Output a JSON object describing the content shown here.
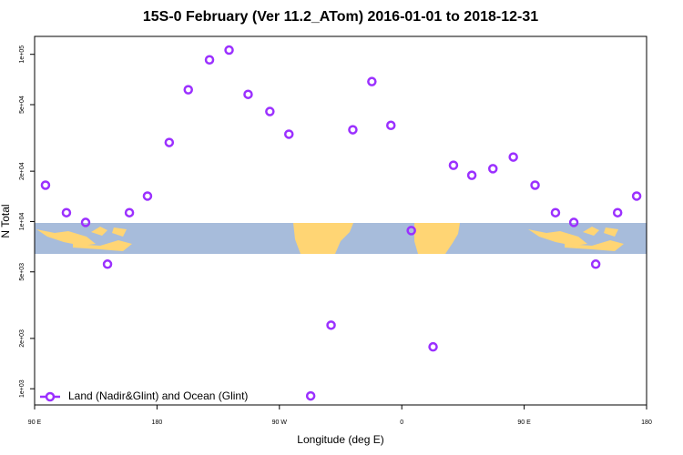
{
  "chart_data": {
    "type": "scatter",
    "title": "15S-0 February (Ver 11.2_ATom)   2016-01-01 to 2018-12-31",
    "x_label": "Longitude (deg E)",
    "y_label": "N Total",
    "log_y": true,
    "legend_position": "bottom-left",
    "xlim": [
      90,
      540
    ],
    "xticks": [
      {
        "value": 90,
        "label": "90 E"
      },
      {
        "value": 180,
        "label": "180"
      },
      {
        "value": 270,
        "label": "90 W"
      },
      {
        "value": 360,
        "label": "0"
      },
      {
        "value": 450,
        "label": "90 E"
      },
      {
        "value": 540,
        "label": "180"
      }
    ],
    "ylim": [
      800,
      128000
    ],
    "yticks": [
      {
        "value": 1000,
        "label": "1e+03"
      },
      {
        "value": 2000,
        "label": "2e+03"
      },
      {
        "value": 5000,
        "label": "5e+03"
      },
      {
        "value": 10000,
        "label": "1e+04"
      },
      {
        "value": 20000,
        "label": "2e+04"
      },
      {
        "value": 50000,
        "label": "5e+04"
      },
      {
        "value": 100000,
        "label": "1e+05"
      }
    ],
    "series": [
      {
        "name": "Land (Nadir&Glint) and Ocean (Glint)",
        "color": "#9b30ff",
        "x": [
          98,
          113.4,
          127.5,
          143.6,
          159.7,
          173,
          189,
          203,
          218.6,
          233,
          247,
          263,
          277,
          293,
          308,
          324,
          338,
          352,
          367,
          383,
          398,
          411.5,
          427,
          442,
          458,
          473,
          486.5,
          502.6,
          518.7,
          532.7
        ],
        "values": [
          16500,
          11300,
          9880,
          5560,
          11300,
          14200,
          29700,
          61400,
          92700,
          106000,
          57600,
          45500,
          33300,
          906,
          2400,
          35400,
          68700,
          37600,
          8830,
          1780,
          21700,
          18900,
          20700,
          24300,
          16500,
          11300,
          9880,
          5560,
          11300,
          14200
        ]
      }
    ]
  }
}
